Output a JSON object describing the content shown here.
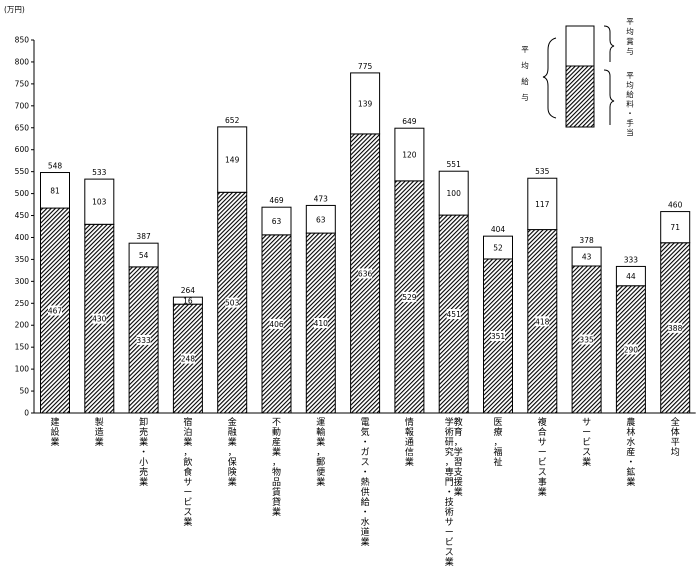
{
  "unit_label": "(万円)",
  "chart_data": {
    "type": "bar",
    "stacked": true,
    "ylim": [
      0,
      850
    ],
    "ytick_step": 50,
    "categories": [
      [
        "建設業"
      ],
      [
        "製造業"
      ],
      [
        "卸売業・小売業"
      ],
      [
        "宿泊業，飲食サービス業"
      ],
      [
        "金融業，保険業"
      ],
      [
        "不動産業，物品賃貸業"
      ],
      [
        "運輸業，郵便業"
      ],
      [
        "電気・ガス・熱供給・水道業"
      ],
      [
        "情報通信業"
      ],
      [
        "学術研究，専門・技術サービス業",
        "教育，学習支援業"
      ],
      [
        "医療，福祉"
      ],
      [
        "複合サービス事業"
      ],
      [
        "サービス業"
      ],
      [
        "農林水産・鉱業"
      ],
      [
        "全体平均"
      ]
    ],
    "series": [
      {
        "name": "平均給料・手当",
        "values": [
          467,
          430,
          333,
          248,
          503,
          406,
          410,
          636,
          529,
          451,
          351,
          418,
          335,
          290,
          388
        ]
      },
      {
        "name": "平均賞与",
        "values": [
          81,
          103,
          54,
          16,
          149,
          63,
          63,
          139,
          120,
          100,
          52,
          117,
          43,
          44,
          71
        ]
      }
    ],
    "totals": [
      548,
      533,
      387,
      264,
      652,
      469,
      473,
      775,
      649,
      551,
      404,
      535,
      378,
      333,
      460
    ],
    "legend": {
      "group_label": "平均給与",
      "position": "top-right",
      "items": [
        "平均賞与",
        "平均給料・手当"
      ]
    },
    "colors": {
      "bottom": "hatched",
      "top": "#ffffff",
      "stroke": "#000000"
    }
  }
}
